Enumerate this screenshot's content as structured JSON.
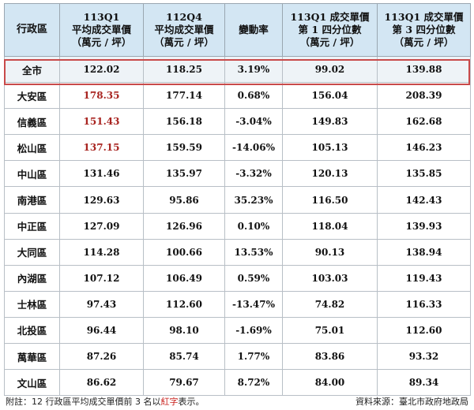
{
  "headers": [
    {
      "lines": [
        "行政區"
      ]
    },
    {
      "lines": [
        "113Q1",
        "平均成交單價",
        "（萬元 / 坪）"
      ]
    },
    {
      "lines": [
        "112Q4",
        "平均成交單價",
        "（萬元 / 坪）"
      ]
    },
    {
      "lines": [
        "變動率"
      ]
    },
    {
      "lines": [
        "113Q1 成交單價",
        "第 1 四分位數",
        "（萬元 / 坪）"
      ]
    },
    {
      "lines": [
        "113Q1 成交單價",
        "第 3 四分位數",
        "（萬元 / 坪）"
      ]
    }
  ],
  "total": {
    "name": "全市",
    "q1_avg": "122.02",
    "q4_avg": "118.25",
    "change": "3.19%",
    "p25": "99.02",
    "p75": "139.88"
  },
  "rows": [
    {
      "name": "大安區",
      "q1_avg": "178.35",
      "q4_avg": "177.14",
      "change": "0.68%",
      "p25": "156.04",
      "p75": "208.39",
      "highlight": true
    },
    {
      "name": "信義區",
      "q1_avg": "151.43",
      "q4_avg": "156.18",
      "change": "-3.04%",
      "p25": "149.83",
      "p75": "162.68",
      "highlight": true
    },
    {
      "name": "松山區",
      "q1_avg": "137.15",
      "q4_avg": "159.59",
      "change": "-14.06%",
      "p25": "105.13",
      "p75": "146.23",
      "highlight": true
    },
    {
      "name": "中山區",
      "q1_avg": "131.46",
      "q4_avg": "135.97",
      "change": "-3.32%",
      "p25": "120.13",
      "p75": "135.85",
      "highlight": false
    },
    {
      "name": "南港區",
      "q1_avg": "129.63",
      "q4_avg": "95.86",
      "change": "35.23%",
      "p25": "116.50",
      "p75": "142.43",
      "highlight": false
    },
    {
      "name": "中正區",
      "q1_avg": "127.09",
      "q4_avg": "126.96",
      "change": "0.10%",
      "p25": "118.04",
      "p75": "139.93",
      "highlight": false
    },
    {
      "name": "大同區",
      "q1_avg": "114.28",
      "q4_avg": "100.66",
      "change": "13.53%",
      "p25": "90.13",
      "p75": "138.94",
      "highlight": false
    },
    {
      "name": "內湖區",
      "q1_avg": "107.12",
      "q4_avg": "106.49",
      "change": "0.59%",
      "p25": "103.03",
      "p75": "119.43",
      "highlight": false
    },
    {
      "name": "士林區",
      "q1_avg": "97.43",
      "q4_avg": "112.60",
      "change": "-13.47%",
      "p25": "74.82",
      "p75": "116.33",
      "highlight": false
    },
    {
      "name": "北投區",
      "q1_avg": "96.44",
      "q4_avg": "98.10",
      "change": "-1.69%",
      "p25": "75.01",
      "p75": "112.60",
      "highlight": false
    },
    {
      "name": "萬華區",
      "q1_avg": "87.26",
      "q4_avg": "85.74",
      "change": "1.77%",
      "p25": "83.86",
      "p75": "93.32",
      "highlight": false
    },
    {
      "name": "文山區",
      "q1_avg": "86.62",
      "q4_avg": "79.67",
      "change": "8.72%",
      "p25": "84.00",
      "p75": "89.34",
      "highlight": false
    }
  ],
  "footer": {
    "note_prefix": "附註：12 行政區平均成交單價前 3 名以",
    "note_emphasis": "紅字",
    "note_suffix": "表示。",
    "source": "資料來源：臺北市政府地政局"
  },
  "colors": {
    "header_bg": "#d3e6f3",
    "highlight_text": "#a8231f",
    "total_outline": "#c94a4a"
  }
}
